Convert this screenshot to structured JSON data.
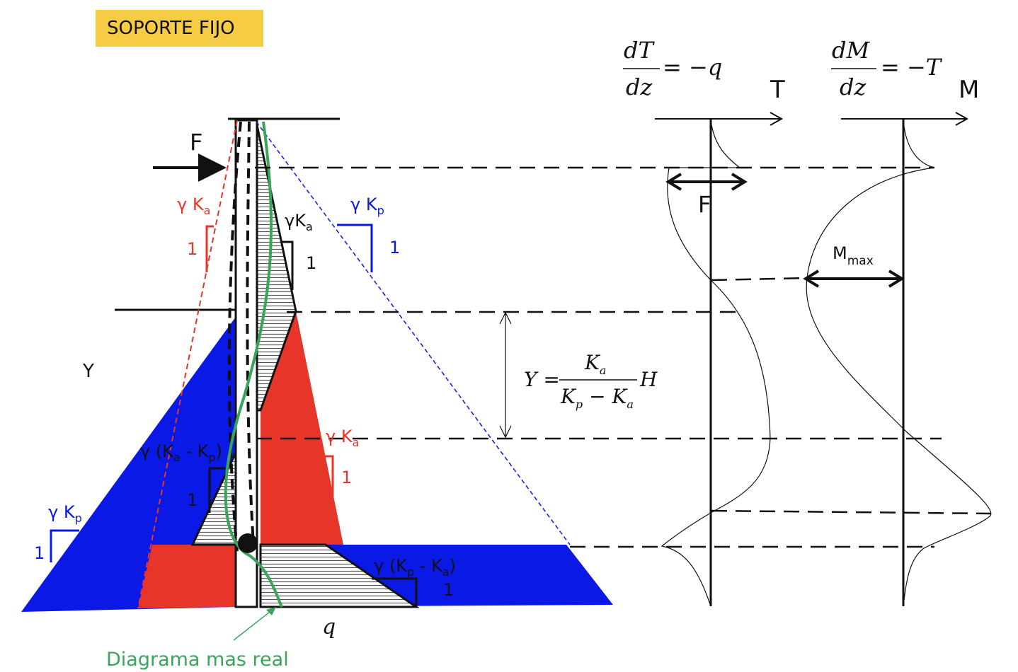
{
  "badge": {
    "text": "SOPORTE FIJO"
  },
  "labels": {
    "force": "F",
    "gamma": "γ",
    "ka": "K",
    "ka_sub": "a",
    "kp": "K",
    "kp_sub": "p",
    "one": "1",
    "y": "Y",
    "ka_minus_kp": "γ (K",
    "kp_minus_ka": "γ (K",
    "minus": " - K",
    "close": ")",
    "q": "q",
    "real_diagram": "Diagrama mas real",
    "t_axis": "T",
    "m_axis": "M",
    "t_force": "F",
    "mmax": "M",
    "mmax_sub": "max"
  },
  "equations": {
    "dT_num": "dT",
    "dT_den": "dz",
    "dT_rhs": "= −q",
    "dM_num": "dM",
    "dM_den": "dz",
    "dM_rhs": "= −T",
    "y_lhs": "Y =",
    "y_num": "K",
    "y_num_sub": "a",
    "y_den1": "K",
    "y_den1_sub": "p",
    "y_den_mid": " − K",
    "y_den2_sub": "a",
    "y_rhs": "H"
  },
  "colors": {
    "red": "#e8352a",
    "blue": "#0a19e6",
    "green": "#3aa55a",
    "badge": "#f7cc45"
  }
}
